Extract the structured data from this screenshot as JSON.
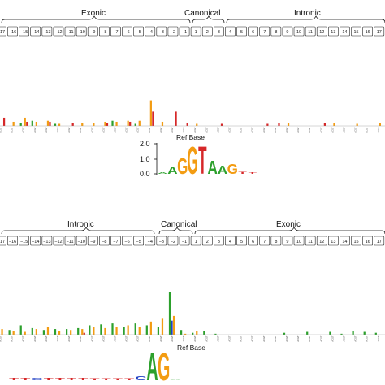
{
  "chart_data": [
    {
      "type": "bar",
      "panel": "donor",
      "region_labels": [
        "Exonic",
        "Canonical",
        "Intronic"
      ],
      "positions": [
        "-17",
        "-16",
        "-15",
        "-14",
        "-13",
        "-12",
        "-11",
        "-10",
        "-9",
        "-8",
        "-7",
        "-6",
        "-5",
        "-4",
        "-3",
        "-2",
        "-1",
        "1",
        "2",
        "3",
        "4",
        "5",
        "6",
        "7",
        "8",
        "9",
        "10",
        "11",
        "12",
        "13",
        "14",
        "15",
        "16",
        "17"
      ],
      "base_label": "ACGT",
      "bar_colors": {
        "A": "#2ca02c",
        "C": "#1f3fc4",
        "G": "#f39c12",
        "T": "#d62728"
      },
      "series": [
        {
          "name": "A",
          "values": [
            0.02,
            0,
            0.03,
            0.05,
            0,
            0.02,
            0,
            0,
            0,
            0,
            0.05,
            0,
            0.02,
            0,
            0,
            0,
            0,
            0,
            0,
            0,
            0,
            0,
            0,
            0,
            0,
            0,
            0,
            0,
            0,
            0,
            0,
            0,
            0,
            0
          ]
        },
        {
          "name": "C",
          "values": [
            0,
            0,
            0,
            0,
            0,
            0,
            0,
            0,
            0,
            0,
            0,
            0,
            0,
            0,
            0,
            0,
            0,
            0,
            0,
            0,
            0,
            0,
            0,
            0,
            0,
            0,
            0,
            0,
            0,
            0,
            0,
            0,
            0,
            0
          ]
        },
        {
          "name": "G",
          "values": [
            0,
            0.04,
            0.08,
            0.04,
            0.05,
            0.02,
            0,
            0.03,
            0.03,
            0.04,
            0.04,
            0.05,
            0.05,
            0.25,
            0.04,
            0,
            0,
            0.02,
            0,
            0,
            0,
            0,
            0,
            0,
            0,
            0.03,
            0,
            0,
            0,
            0.03,
            0,
            0.02,
            0,
            0.03
          ]
        },
        {
          "name": "T",
          "values": [
            0.08,
            0,
            0.04,
            0,
            0.04,
            0,
            0.03,
            0,
            0,
            0.03,
            0,
            0.04,
            0,
            0.14,
            0,
            0.14,
            0.03,
            0,
            0,
            0.02,
            0,
            0,
            0,
            0.02,
            0.03,
            0,
            0,
            0,
            0.03,
            0,
            0,
            0,
            0,
            0
          ]
        }
      ],
      "ylim": [
        0,
        0.7
      ],
      "logo": {
        "xlabel": "Ref Base",
        "yticks": [
          "0.0",
          "1.0",
          "2.0"
        ],
        "ylim": [
          0,
          2.0
        ],
        "letters": [
          {
            "letter": "A",
            "height": 0.1
          },
          {
            "letter": "A",
            "height": 0.5
          },
          {
            "letter": "G",
            "height": 1.1
          },
          {
            "letter": "G",
            "height": 1.9
          },
          {
            "letter": "T",
            "height": 1.9
          },
          {
            "letter": "A",
            "height": 0.9
          },
          {
            "letter": "A",
            "height": 0.6
          },
          {
            "letter": "G",
            "height": 0.7
          },
          {
            "letter": "T",
            "height": 0.15
          },
          {
            "letter": "T",
            "height": 0.1
          }
        ]
      }
    },
    {
      "type": "bar",
      "panel": "acceptor",
      "region_labels": [
        "Intronic",
        "Canonical",
        "Exonic"
      ],
      "positions": [
        "-17",
        "-16",
        "-15",
        "-14",
        "-13",
        "-12",
        "-11",
        "-10",
        "-9",
        "-8",
        "-7",
        "-6",
        "-5",
        "-4",
        "-3",
        "-2",
        "-1",
        "1",
        "2",
        "3",
        "4",
        "5",
        "6",
        "7",
        "8",
        "9",
        "10",
        "11",
        "12",
        "13",
        "14",
        "15",
        "16",
        "17"
      ],
      "base_label": "ACGT",
      "bar_colors": {
        "A": "#2ca02c",
        "C": "#1f3fc4",
        "G": "#f39c12",
        "T": "#d62728"
      },
      "series": [
        {
          "name": "A",
          "values": [
            0.02,
            0.05,
            0.1,
            0.07,
            0.05,
            0.06,
            0.06,
            0.07,
            0.1,
            0.11,
            0.12,
            0.08,
            0.12,
            0.1,
            0.08,
            0.45,
            0.05,
            0.02,
            0.04,
            0.01,
            0,
            0,
            0,
            0,
            0,
            0.02,
            0,
            0.03,
            0,
            0.03,
            0.01,
            0.04,
            0.03,
            0.02
          ]
        },
        {
          "name": "C",
          "values": [
            0,
            0,
            0,
            0,
            0,
            0,
            0,
            0,
            0,
            0,
            0,
            0,
            0,
            0,
            0,
            0.15,
            0,
            0,
            0,
            0,
            0,
            0,
            0,
            0,
            0,
            0,
            0,
            0,
            0,
            0,
            0,
            0,
            0,
            0
          ]
        },
        {
          "name": "G",
          "values": [
            0.06,
            0.04,
            0.03,
            0.06,
            0.08,
            0.04,
            0.05,
            0.06,
            0.08,
            0.07,
            0.08,
            0.1,
            0.08,
            0.14,
            0.17,
            0.2,
            0.01,
            0.04,
            0,
            0,
            0,
            0,
            0,
            0,
            0,
            0,
            0,
            0,
            0,
            0,
            0,
            0,
            0,
            0
          ]
        },
        {
          "name": "T",
          "values": [
            0,
            0,
            0,
            0,
            0,
            0,
            0,
            0.02,
            0,
            0,
            0,
            0,
            0,
            0,
            0,
            0,
            0,
            0,
            0,
            0,
            0,
            0,
            0,
            0,
            0,
            0,
            0,
            0,
            0,
            0,
            0,
            0,
            0,
            0
          ]
        }
      ],
      "ylim": [
        0,
        0.9
      ],
      "logo": {
        "xlabel": "Ref Base",
        "letters": [
          {
            "letter": "T",
            "height": 0.2
          },
          {
            "letter": "T",
            "height": 0.2
          },
          {
            "letter": "C",
            "height": 0.2
          },
          {
            "letter": "T",
            "height": 0.2
          },
          {
            "letter": "T",
            "height": 0.2
          },
          {
            "letter": "T",
            "height": 0.2
          },
          {
            "letter": "T",
            "height": 0.2
          },
          {
            "letter": "T",
            "height": 0.15
          },
          {
            "letter": "T",
            "height": 0.15
          },
          {
            "letter": "T",
            "height": 0.15
          },
          {
            "letter": "T",
            "height": 0.15
          },
          {
            "letter": "C",
            "height": 0.3
          },
          {
            "letter": "A",
            "height": 2.0
          },
          {
            "letter": "G",
            "height": 2.0
          },
          {
            "letter": "A",
            "height": 0.05
          }
        ]
      }
    }
  ]
}
